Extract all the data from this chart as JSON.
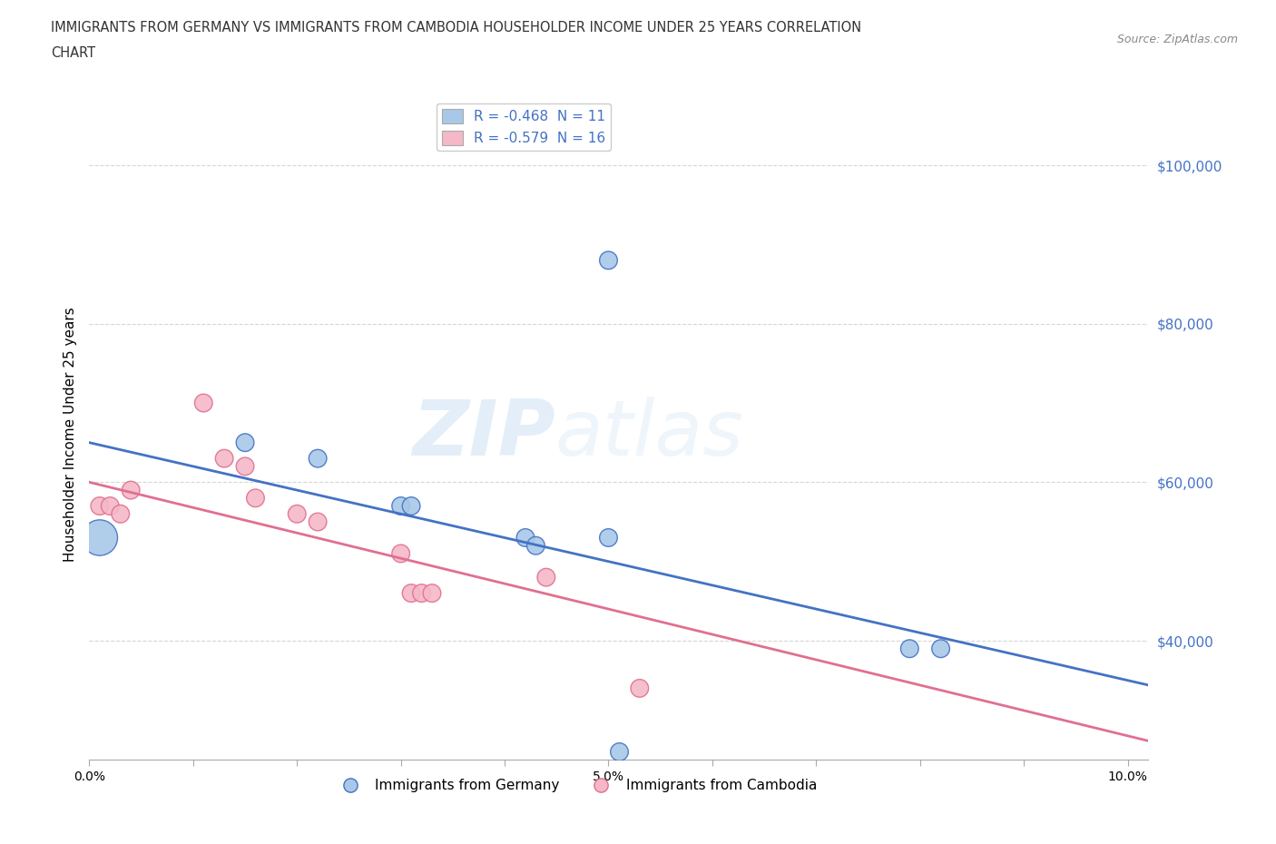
{
  "title_line1": "IMMIGRANTS FROM GERMANY VS IMMIGRANTS FROM CAMBODIA HOUSEHOLDER INCOME UNDER 25 YEARS CORRELATION",
  "title_line2": "CHART",
  "source": "Source: ZipAtlas.com",
  "ylabel": "Householder Income Under 25 years",
  "xlim": [
    0.0,
    0.102
  ],
  "ylim": [
    25000,
    107000
  ],
  "xticks": [
    0.0,
    0.01,
    0.02,
    0.03,
    0.04,
    0.05,
    0.06,
    0.07,
    0.08,
    0.09,
    0.1
  ],
  "xticklabels": [
    "0.0%",
    "",
    "",
    "",
    "",
    "5.0%",
    "",
    "",
    "",
    "",
    "10.0%"
  ],
  "yticks": [
    40000,
    60000,
    80000,
    100000
  ],
  "germany_color": "#a8c8e8",
  "cambodia_color": "#f4b8c8",
  "germany_line_color": "#4472c4",
  "cambodia_line_color": "#e07090",
  "germany_R": -0.468,
  "germany_N": 11,
  "cambodia_R": -0.579,
  "cambodia_N": 16,
  "germany_x": [
    0.001,
    0.015,
    0.022,
    0.03,
    0.031,
    0.042,
    0.043,
    0.05,
    0.079,
    0.082,
    0.05
  ],
  "germany_y": [
    53000,
    65000,
    63000,
    57000,
    57000,
    53000,
    52000,
    53000,
    39000,
    39000,
    88000
  ],
  "germany_size": [
    800,
    200,
    200,
    200,
    200,
    200,
    200,
    200,
    200,
    200,
    200
  ],
  "cambodia_x": [
    0.001,
    0.002,
    0.003,
    0.004,
    0.011,
    0.013,
    0.015,
    0.016,
    0.02,
    0.022,
    0.03,
    0.031,
    0.032,
    0.033,
    0.044,
    0.053
  ],
  "cambodia_y": [
    57000,
    57000,
    56000,
    59000,
    70000,
    63000,
    62000,
    58000,
    56000,
    55000,
    51000,
    46000,
    46000,
    46000,
    48000,
    34000
  ],
  "cambodia_size": [
    200,
    200,
    200,
    200,
    200,
    200,
    200,
    200,
    200,
    200,
    200,
    200,
    200,
    200,
    200,
    200
  ],
  "germany_x_extra": [
    0.051
  ],
  "germany_y_extra": [
    26000
  ],
  "watermark_zip": "ZIP",
  "watermark_atlas": "atlas",
  "background_color": "#ffffff",
  "grid_color": "#cccccc",
  "grid_linestyle": "--"
}
